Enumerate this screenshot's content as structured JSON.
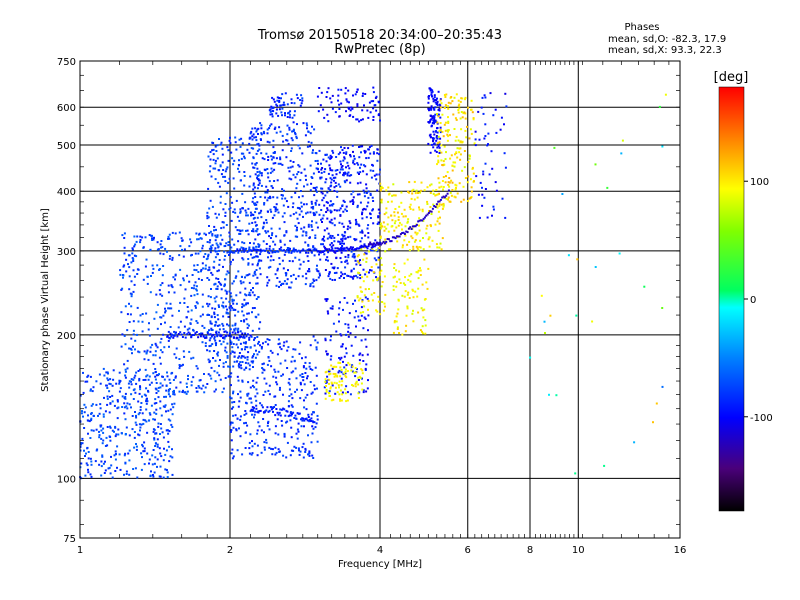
{
  "chart_data": {
    "type": "scatter",
    "title": "Tromsø 20150518 20:34:00–20:35:43",
    "subtitle": "RwPretec (8p)",
    "xlabel": "Frequency [MHz]",
    "ylabel": "Stationary phase Virtual Height [km]",
    "x_scale": "log",
    "y_scale": "log",
    "xlim": [
      1,
      16
    ],
    "ylim": [
      75,
      750
    ],
    "x_ticks": [
      1,
      2,
      4,
      6,
      8,
      10,
      16
    ],
    "y_ticks": [
      75,
      100,
      200,
      300,
      400,
      500,
      600,
      750
    ],
    "grid": true,
    "colorbar": {
      "label": "[deg]",
      "min": -180,
      "max": 180,
      "ticks": [
        100,
        0,
        -100
      ],
      "colormap": "rainbow"
    },
    "stats": {
      "heading": "Phases",
      "line_o": "mean, sd,O: -82.3, 17.9",
      "line_x": "mean, sd,X:  93.3, 22.3"
    },
    "clusters": [
      {
        "f": [
          1.0,
          1.55
        ],
        "h": [
          100,
          170
        ],
        "phase": [
          -90,
          -60
        ],
        "n": 400
      },
      {
        "f": [
          1.2,
          2.0
        ],
        "h": [
          150,
          330
        ],
        "phase": [
          -90,
          -60
        ],
        "n": 500
      },
      {
        "f": [
          1.8,
          2.3
        ],
        "h": [
          170,
          520
        ],
        "phase": [
          -90,
          -65
        ],
        "n": 450
      },
      {
        "f": [
          2.0,
          3.0
        ],
        "h": [
          110,
          200
        ],
        "phase": [
          -95,
          -70
        ],
        "n": 350
      },
      {
        "f": [
          2.2,
          3.0
        ],
        "h": [
          250,
          560
        ],
        "phase": [
          -95,
          -70
        ],
        "n": 450
      },
      {
        "f": [
          2.4,
          2.8
        ],
        "h": [
          570,
          650
        ],
        "phase": [
          -100,
          -70
        ],
        "n": 60
      },
      {
        "f": [
          3.0,
          4.0
        ],
        "h": [
          260,
          500
        ],
        "phase": [
          -110,
          -75
        ],
        "n": 420
      },
      {
        "f": [
          3.0,
          4.0
        ],
        "h": [
          560,
          660
        ],
        "phase": [
          -110,
          -90
        ],
        "n": 80
      },
      {
        "f": [
          3.1,
          3.8
        ],
        "h": [
          150,
          240
        ],
        "phase": [
          -110,
          -80
        ],
        "n": 120
      },
      {
        "f": [
          3.1,
          3.7
        ],
        "h": [
          145,
          175
        ],
        "phase": [
          85,
          105
        ],
        "n": 90
      },
      {
        "f": [
          3.6,
          4.1
        ],
        "h": [
          220,
          310
        ],
        "phase": [
          80,
          110
        ],
        "n": 70
      },
      {
        "f": [
          4.0,
          5.4
        ],
        "h": [
          300,
          420
        ],
        "phase": [
          80,
          115
        ],
        "n": 180
      },
      {
        "f": [
          4.2,
          5.0
        ],
        "h": [
          200,
          290
        ],
        "phase": [
          80,
          110
        ],
        "n": 80
      },
      {
        "f": [
          5.0,
          5.3
        ],
        "h": [
          480,
          660
        ],
        "phase": [
          -110,
          -90
        ],
        "n": 110
      },
      {
        "f": [
          5.2,
          6.2
        ],
        "h": [
          380,
          640
        ],
        "phase": [
          80,
          120
        ],
        "n": 180
      },
      {
        "f": [
          6.2,
          7.2
        ],
        "h": [
          350,
          650
        ],
        "phase": [
          -110,
          -80
        ],
        "n": 50
      },
      {
        "f": [
          8.0,
          15.0
        ],
        "h": [
          100,
          650
        ],
        "phase": [
          -60,
          120
        ],
        "n": 30
      }
    ],
    "trace_lines": [
      {
        "f": [
          2.0,
          3.0
        ],
        "h": [
          300,
          300
        ],
        "phase": -85
      },
      {
        "f": [
          3.0,
          4.0
        ],
        "h": [
          300,
          310
        ],
        "phase": -100
      },
      {
        "f": [
          3.8,
          5.5
        ],
        "h": [
          310,
          400
        ],
        "phase": -120
      },
      {
        "f": [
          1.5,
          2.2
        ],
        "h": [
          200,
          200
        ],
        "phase": -95
      },
      {
        "f": [
          2.2,
          3.0
        ],
        "h": [
          140,
          130
        ],
        "phase": -90
      }
    ]
  }
}
